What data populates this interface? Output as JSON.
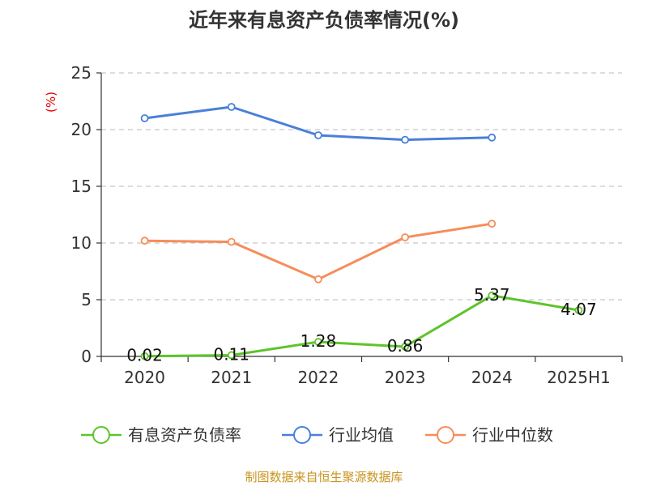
{
  "chart_data": {
    "type": "line",
    "title": "近年来有息资产负债率情况(%)",
    "unit_label": "(%)",
    "categories": [
      "2020",
      "2021",
      "2022",
      "2023",
      "2024",
      "2025H1"
    ],
    "ylim": [
      0,
      25
    ],
    "yticks": [
      0,
      5,
      10,
      15,
      20,
      25
    ],
    "grid": true,
    "legend_position": "bottom",
    "series": [
      {
        "name": "有息资产负债率",
        "color": "#5ec42a",
        "values": [
          0.02,
          0.11,
          1.28,
          0.86,
          5.37,
          4.07
        ],
        "labels": [
          "0.02",
          "0.11",
          "1.28",
          "0.86",
          "5.37",
          "4.07"
        ]
      },
      {
        "name": "行业均值",
        "color": "#4a7fd9",
        "values": [
          21.0,
          22.0,
          19.5,
          19.1,
          19.3,
          null
        ]
      },
      {
        "name": "行业中位数",
        "color": "#f78c5a",
        "values": [
          10.2,
          10.1,
          6.8,
          10.5,
          11.7,
          null
        ]
      }
    ],
    "source": "制图数据来自恒生聚源数据库"
  }
}
